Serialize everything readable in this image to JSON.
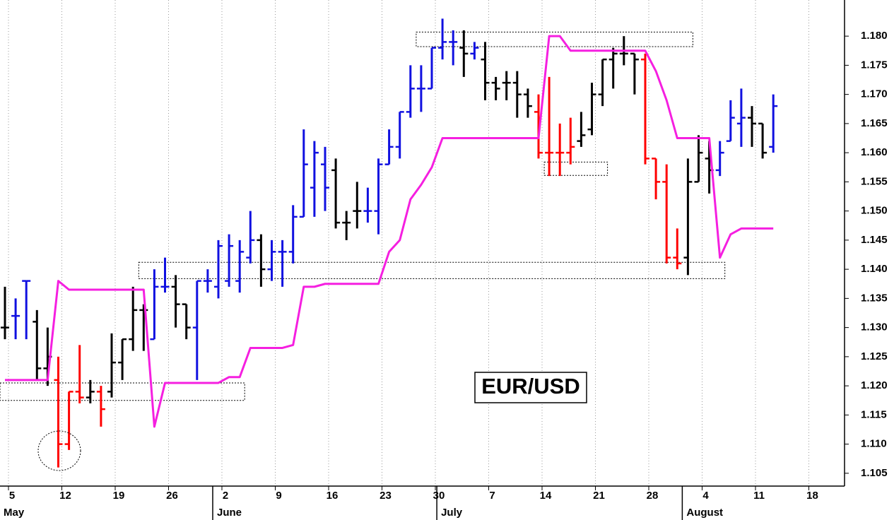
{
  "chart_data": {
    "type": "ohlc",
    "title": "EUR/USD",
    "categories": [
      "5",
      null,
      null,
      null,
      null,
      "12",
      null,
      null,
      null,
      null,
      "19",
      null,
      null,
      null,
      null,
      "26",
      null,
      null,
      null,
      null,
      "2",
      null,
      null,
      null,
      null,
      "9",
      null,
      null,
      null,
      null,
      "16",
      null,
      null,
      null,
      null,
      "23",
      null,
      null,
      null,
      null,
      "30",
      null,
      null,
      null,
      null,
      "7",
      null,
      null,
      null,
      null,
      "14",
      null,
      null,
      null,
      null,
      "21",
      null,
      null,
      null,
      null,
      "28",
      null,
      null,
      null,
      null,
      "4",
      null,
      null,
      null,
      null,
      "11",
      null,
      null,
      null,
      null,
      "18",
      null,
      null,
      null
    ],
    "months": [
      "May",
      null,
      null,
      null,
      null,
      null,
      null,
      null,
      null,
      null,
      null,
      null,
      null,
      null,
      null,
      null,
      null,
      null,
      null,
      null,
      "June",
      null,
      null,
      null,
      null,
      null,
      null,
      null,
      null,
      null,
      null,
      null,
      null,
      null,
      null,
      null,
      null,
      null,
      null,
      null,
      null,
      "July",
      null,
      null,
      null,
      null,
      null,
      null,
      null,
      null,
      null,
      null,
      null,
      null,
      null,
      null,
      null,
      null,
      null,
      null,
      null,
      null,
      null,
      null,
      "August",
      null,
      null,
      null,
      null,
      null,
      null,
      null,
      null,
      null,
      null,
      null,
      null,
      null,
      null
    ],
    "series": [
      {
        "type": "ohlc",
        "open": [
          1.13,
          1.132,
          1.138,
          1.131,
          1.123,
          1.121,
          1.11,
          1.119,
          1.118,
          1.119,
          1.119,
          1.124,
          1.128,
          1.133,
          1.128,
          1.137,
          1.137,
          1.134,
          1.13,
          1.138,
          1.137,
          1.138,
          1.138,
          1.142,
          1.145,
          1.14,
          1.143,
          1.143,
          1.149,
          1.154,
          1.158,
          1.157,
          1.148,
          1.15,
          1.15,
          1.15,
          1.158,
          1.161,
          1.167,
          1.171,
          1.171,
          1.178,
          1.179,
          1.178,
          1.177,
          1.176,
          1.172,
          1.172,
          1.172,
          1.17,
          1.167,
          1.16,
          1.16,
          1.16,
          1.162,
          1.164,
          1.17,
          1.176,
          1.177,
          1.177,
          1.176,
          1.159,
          1.155,
          1.142,
          1.142,
          1.155,
          1.159,
          1.157,
          1.162,
          1.165,
          1.166,
          1.165,
          1.161,
          null,
          null,
          null,
          null,
          null,
          null
        ],
        "high": [
          1.137,
          1.135,
          1.138,
          1.133,
          1.13,
          1.125,
          1.119,
          1.127,
          1.121,
          1.12,
          1.129,
          1.128,
          1.137,
          1.134,
          1.14,
          1.142,
          1.139,
          1.134,
          1.138,
          1.14,
          1.145,
          1.146,
          1.145,
          1.15,
          1.146,
          1.145,
          1.145,
          1.151,
          1.164,
          1.162,
          1.161,
          1.159,
          1.15,
          1.155,
          1.154,
          1.159,
          1.164,
          1.167,
          1.175,
          1.175,
          1.178,
          1.183,
          1.181,
          1.181,
          1.179,
          1.179,
          1.173,
          1.174,
          1.174,
          1.171,
          1.17,
          1.173,
          1.165,
          1.166,
          1.167,
          1.172,
          1.176,
          1.178,
          1.18,
          1.177,
          1.177,
          1.159,
          1.158,
          1.147,
          1.159,
          1.163,
          1.162,
          1.162,
          1.169,
          1.171,
          1.168,
          1.165,
          1.17,
          null,
          null,
          null,
          null,
          null,
          null
        ],
        "low": [
          1.128,
          1.128,
          1.128,
          1.121,
          1.12,
          1.106,
          1.109,
          1.117,
          1.117,
          1.113,
          1.118,
          1.121,
          1.126,
          1.126,
          1.128,
          1.136,
          1.13,
          1.128,
          1.121,
          1.136,
          1.135,
          1.137,
          1.136,
          1.141,
          1.137,
          1.138,
          1.137,
          1.141,
          1.149,
          1.149,
          1.15,
          1.147,
          1.145,
          1.147,
          1.148,
          1.146,
          1.158,
          1.159,
          1.166,
          1.167,
          1.171,
          1.176,
          1.175,
          1.173,
          1.176,
          1.169,
          1.169,
          1.169,
          1.166,
          1.166,
          1.159,
          1.156,
          1.156,
          1.158,
          1.161,
          1.163,
          1.168,
          1.171,
          1.175,
          1.17,
          1.158,
          1.152,
          1.141,
          1.14,
          1.139,
          1.155,
          1.153,
          1.156,
          1.162,
          1.161,
          1.161,
          1.159,
          1.16,
          null,
          null,
          null,
          null,
          null,
          null
        ],
        "close": [
          1.13,
          1.132,
          1.138,
          1.123,
          1.125,
          1.11,
          1.119,
          1.118,
          1.119,
          1.116,
          1.124,
          1.128,
          1.133,
          1.133,
          1.137,
          1.137,
          1.134,
          1.13,
          1.138,
          1.138,
          1.144,
          1.144,
          1.143,
          1.145,
          1.14,
          1.143,
          1.143,
          1.149,
          1.158,
          1.16,
          1.154,
          1.148,
          1.148,
          1.15,
          1.15,
          1.158,
          1.161,
          1.167,
          1.171,
          1.171,
          1.178,
          1.179,
          1.179,
          1.177,
          1.178,
          1.172,
          1.171,
          1.172,
          1.17,
          1.168,
          1.16,
          1.16,
          1.16,
          1.161,
          1.163,
          1.17,
          1.176,
          1.177,
          1.177,
          1.176,
          1.159,
          1.155,
          1.142,
          1.141,
          1.155,
          1.16,
          1.157,
          1.16,
          1.166,
          1.166,
          1.165,
          1.16,
          1.168,
          null,
          null,
          null,
          null,
          null,
          null
        ],
        "colors": [
          "#000000",
          "#1010e0",
          "#1010e0",
          "#000000",
          "#000000",
          "#ff0000",
          "#ff0000",
          "#ff0000",
          "#000000",
          "#ff0000",
          "#000000",
          "#000000",
          "#000000",
          "#000000",
          "#1010e0",
          "#1010e0",
          "#000000",
          "#000000",
          "#1010e0",
          "#1010e0",
          "#1010e0",
          "#1010e0",
          "#1010e0",
          "#1010e0",
          "#000000",
          "#1010e0",
          "#1010e0",
          "#1010e0",
          "#1010e0",
          "#1010e0",
          "#1010e0",
          "#000000",
          "#000000",
          "#000000",
          "#1010e0",
          "#1010e0",
          "#1010e0",
          "#1010e0",
          "#1010e0",
          "#1010e0",
          "#1010e0",
          "#1010e0",
          "#1010e0",
          "#000000",
          "#1010e0",
          "#000000",
          "#000000",
          "#000000",
          "#000000",
          "#000000",
          "#ff0000",
          "#ff0000",
          "#ff0000",
          "#ff0000",
          "#000000",
          "#000000",
          "#000000",
          "#000000",
          "#000000",
          "#000000",
          "#ff0000",
          "#ff0000",
          "#ff0000",
          "#ff0000",
          "#000000",
          "#000000",
          "#000000",
          "#1010e0",
          "#1010e0",
          "#1010e0",
          "#000000",
          "#000000",
          "#1010e0",
          null,
          null,
          null,
          null,
          null,
          null
        ]
      },
      {
        "type": "line",
        "color": "#f51fe0",
        "values": [
          1.121,
          1.121,
          1.121,
          1.121,
          1.121,
          1.138,
          1.1365,
          1.1365,
          1.1365,
          1.1365,
          1.1365,
          1.1365,
          1.1365,
          1.1365,
          1.113,
          1.1205,
          1.1205,
          1.1205,
          1.1205,
          1.1205,
          1.1205,
          1.1215,
          1.1215,
          1.1265,
          1.1265,
          1.1265,
          1.1265,
          1.127,
          1.137,
          1.137,
          1.1375,
          1.1375,
          1.1375,
          1.1375,
          1.1375,
          1.1375,
          1.143,
          1.145,
          1.152,
          1.1545,
          1.1575,
          1.1625,
          1.1625,
          1.1625,
          1.1625,
          1.1625,
          1.1625,
          1.1625,
          1.1625,
          1.1625,
          1.1625,
          1.18,
          1.18,
          1.1775,
          1.1775,
          1.1775,
          1.1775,
          1.1775,
          1.1775,
          1.1775,
          1.1775,
          1.174,
          1.169,
          1.1625,
          1.1625,
          1.1625,
          1.1625,
          1.142,
          1.146,
          1.147,
          1.147,
          1.147,
          1.147,
          null,
          null,
          null,
          null,
          null,
          null
        ]
      }
    ],
    "boxes": [
      {
        "from": 0,
        "to": 22,
        "low": 1.1175,
        "high": 1.1205
      },
      {
        "from": 13,
        "to": 67,
        "low": 1.1384,
        "high": 1.1412
      },
      {
        "from": 39,
        "to": 64,
        "low": 1.1782,
        "high": 1.1807
      },
      {
        "from": 51,
        "to": 56,
        "low": 1.1561,
        "high": 1.1584
      }
    ],
    "ylim": [
      1.1028,
      1.1862
    ],
    "yticks": [
      1.105,
      {
        "value": 1.11,
        "label": "1.110"
      },
      1.115,
      {
        "value": 1.12,
        "label": "1.120"
      },
      1.125,
      {
        "value": 1.13,
        "label": "1.130"
      },
      1.135,
      {
        "value": 1.14,
        "label": "1.140"
      },
      1.145,
      {
        "value": 1.15,
        "label": "1.150"
      },
      1.155,
      {
        "value": 1.16,
        "label": "1.160"
      },
      1.165,
      {
        "value": 1.17,
        "label": "1.170"
      },
      1.175,
      {
        "value": 1.18,
        "label": "1.180"
      }
    ],
    "grid": true
  }
}
